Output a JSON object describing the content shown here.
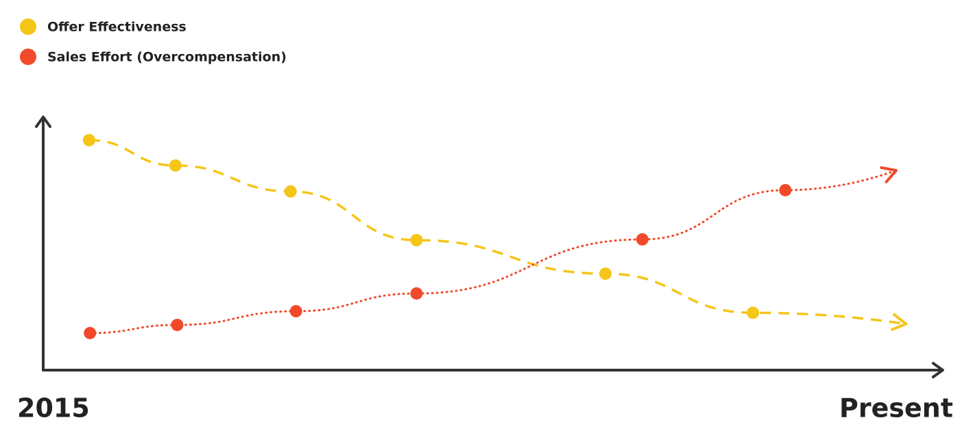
{
  "chart_data": {
    "type": "line",
    "x_start_label": "2015",
    "x_end_label": "Present",
    "xlim": [
      0,
      100
    ],
    "ylim": [
      0,
      100
    ],
    "series": [
      {
        "name": "Offer Effectiveness",
        "color": "#f5c518",
        "style": "dashed",
        "x": [
          5.1,
          14.7,
          27.5,
          41.5,
          62.5,
          78.9,
          95.7
        ],
        "values": [
          90.6,
          80.6,
          70.4,
          51.2,
          38.0,
          22.6,
          18.3
        ]
      },
      {
        "name": "Sales Effort (Overcompensation)",
        "color": "#f04a2a",
        "style": "dotted",
        "x": [
          5.2,
          14.9,
          28.1,
          41.5,
          66.6,
          82.5,
          94.6
        ],
        "values": [
          14.6,
          17.8,
          23.2,
          30.2,
          51.5,
          70.9,
          78.4
        ]
      }
    ]
  }
}
